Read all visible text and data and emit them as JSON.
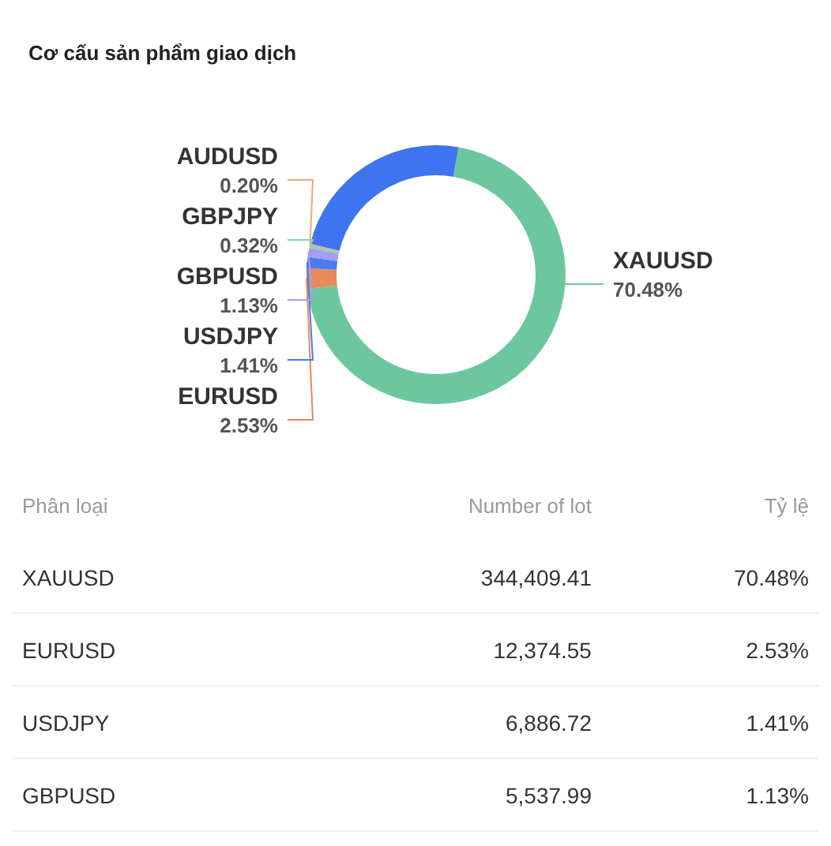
{
  "chart_data": [
    {
      "type": "donut",
      "title": "Cơ cấu sản phẩm giao dịch",
      "categories": [
        "XAUUSD",
        "EURUSD",
        "USDJPY",
        "GBPUSD",
        "GBPJPY",
        "AUDUSD",
        null
      ],
      "values": [
        70.48,
        2.53,
        1.41,
        1.13,
        0.32,
        0.2,
        23.93
      ],
      "value_labels": [
        "70.48%",
        "2.53%",
        "1.41%",
        "1.13%",
        "0.32%",
        "0.20%",
        null
      ],
      "colors": [
        "#6cc79f",
        "#e8895a",
        "#4a7cf0",
        "#a79cf2",
        "#7fd6b8",
        "#f0a77e",
        "#3f74f0"
      ]
    },
    {
      "type": "other",
      "xlabel": "Phân loại",
      "categories": [
        "XAUUSD",
        "EURUSD",
        "USDJPY",
        "GBPUSD"
      ],
      "series": [
        {
          "name": "Number of lot",
          "values": [
            344409.41,
            12374.55,
            6886.72,
            5537.99
          ],
          "value_labels": [
            "344,409.41",
            "12,374.55",
            "6,886.72",
            "5,537.99"
          ]
        },
        {
          "name": "Tỷ lệ",
          "values": [
            70.48,
            2.53,
            1.41,
            1.13
          ],
          "value_labels": [
            "70.48%",
            "2.53%",
            "1.41%",
            "1.13%"
          ]
        }
      ]
    }
  ]
}
